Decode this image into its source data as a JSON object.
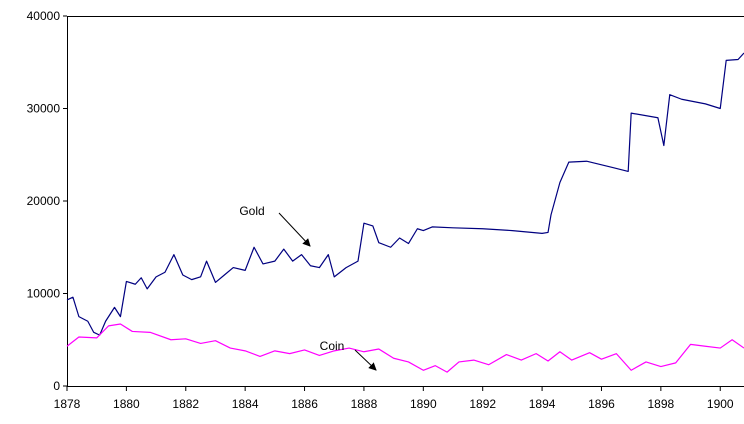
{
  "chart_data": {
    "type": "line",
    "annotations": [
      "Gold",
      "Coin"
    ],
    "xlim": [
      1878,
      1900.8
    ],
    "xticks": [
      1878,
      1880,
      1882,
      1884,
      1886,
      1888,
      1890,
      1892,
      1894,
      1896,
      1898,
      1900
    ],
    "ylim": [
      0,
      40000
    ],
    "yticks": [
      0,
      10000,
      20000,
      30000,
      40000
    ],
    "grid": false,
    "series": [
      {
        "name": "Gold",
        "color": "#000080",
        "x": [
          1878.0,
          1878.2,
          1878.4,
          1878.7,
          1878.9,
          1879.1,
          1879.3,
          1879.6,
          1879.8,
          1880.0,
          1880.3,
          1880.5,
          1880.7,
          1881.0,
          1881.3,
          1881.6,
          1881.9,
          1882.2,
          1882.5,
          1882.7,
          1883.0,
          1883.3,
          1883.6,
          1884.0,
          1884.3,
          1884.6,
          1885.0,
          1885.3,
          1885.6,
          1885.9,
          1886.2,
          1886.5,
          1886.8,
          1887.0,
          1887.4,
          1887.8,
          1888.0,
          1888.3,
          1888.5,
          1888.9,
          1889.2,
          1889.5,
          1889.8,
          1890.0,
          1890.3,
          1891.0,
          1892.0,
          1893.0,
          1894.0,
          1894.2,
          1894.3,
          1894.6,
          1894.9,
          1895.5,
          1896.4,
          1896.9,
          1897.0,
          1897.9,
          1898.1,
          1898.3,
          1898.7,
          1899.5,
          1900.0,
          1900.2,
          1900.6,
          1900.8
        ],
        "values": [
          9300,
          9600,
          7500,
          7000,
          5800,
          5500,
          7000,
          8500,
          7500,
          11300,
          11000,
          11700,
          10500,
          11800,
          12300,
          14200,
          12000,
          11500,
          11800,
          13500,
          11200,
          12000,
          12800,
          12500,
          15000,
          13200,
          13500,
          14800,
          13500,
          14200,
          13000,
          12800,
          14200,
          11800,
          12800,
          13500,
          17600,
          17300,
          15500,
          15000,
          16000,
          15400,
          17000,
          16800,
          17200,
          17100,
          17000,
          16800,
          16500,
          16600,
          18500,
          22000,
          24200,
          24300,
          23600,
          23200,
          29500,
          29000,
          26000,
          31500,
          31000,
          30500,
          30000,
          35200,
          35300,
          36000
        ]
      },
      {
        "name": "Coin",
        "color": "#ff00ff",
        "x": [
          1878.0,
          1878.4,
          1879.0,
          1879.4,
          1879.8,
          1880.2,
          1880.8,
          1881.5,
          1882.0,
          1882.5,
          1883.0,
          1883.5,
          1884.0,
          1884.5,
          1885.0,
          1885.5,
          1886.0,
          1886.5,
          1887.0,
          1887.5,
          1888.0,
          1888.5,
          1889.0,
          1889.5,
          1890.0,
          1890.4,
          1890.8,
          1891.2,
          1891.7,
          1892.2,
          1892.8,
          1893.3,
          1893.8,
          1894.2,
          1894.6,
          1895.0,
          1895.6,
          1896.0,
          1896.5,
          1897.0,
          1897.5,
          1898.0,
          1898.5,
          1899.0,
          1899.5,
          1900.0,
          1900.4,
          1900.8
        ],
        "values": [
          4300,
          5300,
          5200,
          6500,
          6700,
          5900,
          5800,
          5000,
          5100,
          4600,
          4900,
          4100,
          3800,
          3200,
          3800,
          3500,
          3900,
          3300,
          3800,
          4100,
          3700,
          4000,
          3000,
          2600,
          1700,
          2200,
          1500,
          2600,
          2800,
          2300,
          3400,
          2800,
          3500,
          2700,
          3700,
          2800,
          3600,
          2900,
          3500,
          1700,
          2600,
          2100,
          2500,
          4500,
          4300,
          4100,
          5000,
          4100
        ]
      }
    ]
  }
}
